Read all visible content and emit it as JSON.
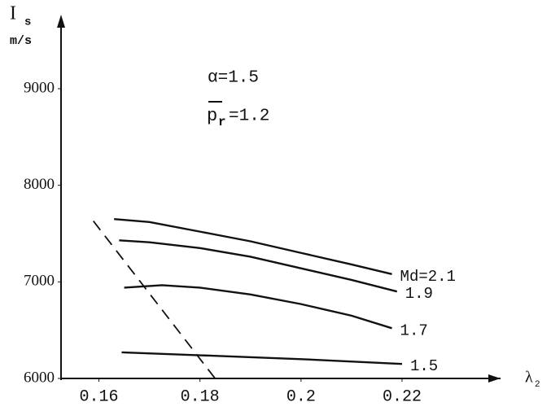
{
  "chart_data": {
    "type": "line",
    "y_label": {
      "main": "I",
      "sub": "s"
    },
    "y_unit": "m/s",
    "x_label": {
      "main": "λ",
      "sub": "2"
    },
    "annotations": [
      {
        "main": "α=1.5"
      },
      {
        "main": "p",
        "sub": "r",
        "rest": "=1.2"
      }
    ],
    "xlim": [
      0.1525,
      0.2395
    ],
    "ylim": [
      6000,
      9750
    ],
    "xticks": [
      0.16,
      0.18,
      0.2,
      0.22
    ],
    "yticks": [
      6000,
      7000,
      8000,
      9000
    ],
    "series": [
      {
        "name": "Md=2.1",
        "color": "#111111",
        "x": [
          0.163,
          0.17,
          0.18,
          0.19,
          0.2,
          0.21,
          0.218
        ],
        "values": [
          7650,
          7620,
          7520,
          7420,
          7300,
          7180,
          7080
        ]
      },
      {
        "name": "1.9",
        "color": "#111111",
        "x": [
          0.164,
          0.17,
          0.18,
          0.19,
          0.2,
          0.21,
          0.219
        ],
        "values": [
          7430,
          7410,
          7350,
          7260,
          7140,
          7020,
          6900
        ]
      },
      {
        "name": "1.7",
        "color": "#111111",
        "x": [
          0.165,
          0.1725,
          0.18,
          0.19,
          0.2,
          0.21,
          0.218
        ],
        "values": [
          6940,
          6965,
          6940,
          6870,
          6770,
          6650,
          6520
        ]
      },
      {
        "name": "1.5",
        "color": "#111111",
        "x": [
          0.1645,
          0.18,
          0.2,
          0.22
        ],
        "values": [
          6270,
          6240,
          6200,
          6150
        ]
      },
      {
        "color": "#111111",
        "dashed": true,
        "x": [
          0.1589,
          0.183
        ],
        "values": [
          7630,
          6000
        ]
      }
    ]
  }
}
